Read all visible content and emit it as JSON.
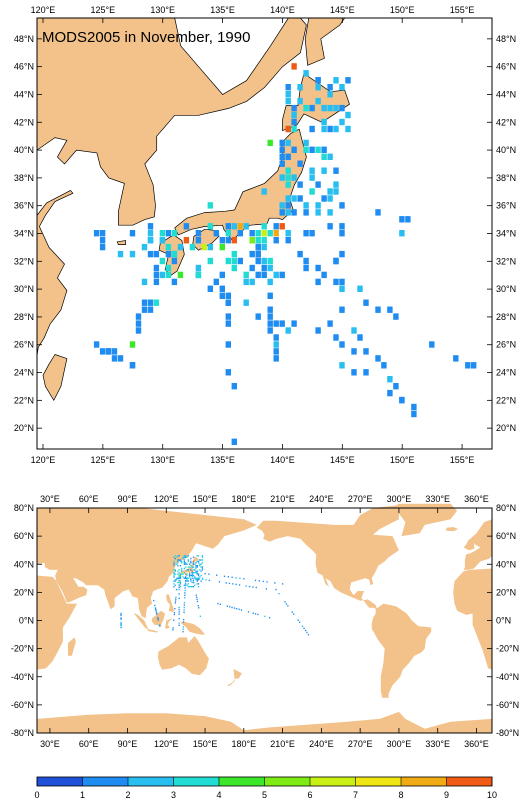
{
  "colors": {
    "land": "#F2C28A",
    "ocean": "#FFFFFF",
    "frame": "#000000",
    "palette": [
      "#2050D8",
      "#1E8CF0",
      "#28BEF0",
      "#20DCD2",
      "#3CE628",
      "#7EEC14",
      "#C8F014",
      "#F0E614",
      "#F0AA14",
      "#F05A14"
    ]
  },
  "regional_map": {
    "title": "MODS2005 in November, 1990",
    "lon_labels": [
      "120°E",
      "125°E",
      "130°E",
      "135°E",
      "140°E",
      "145°E",
      "150°E",
      "155°E"
    ],
    "lat_labels": [
      "48°N",
      "46°N",
      "44°N",
      "42°N",
      "40°N",
      "38°N",
      "36°N",
      "34°N",
      "32°N",
      "30°N",
      "28°N",
      "26°N",
      "24°N",
      "22°N",
      "20°N"
    ]
  },
  "global_map": {
    "lon_labels": [
      "30°E",
      "60°E",
      "90°E",
      "120°E",
      "150°E",
      "180°E",
      "210°E",
      "240°E",
      "270°E",
      "300°E",
      "330°E",
      "360°E"
    ],
    "lat_labels": [
      "80°N",
      "60°N",
      "40°N",
      "20°N",
      "0°N",
      "-20°N",
      "-40°N",
      "-60°N",
      "-80°N"
    ]
  },
  "colorbar": {
    "labels": [
      "0",
      "1",
      "2",
      "3",
      "4",
      "5",
      "6",
      "7",
      "8",
      "9",
      "10"
    ]
  },
  "chart_data": {
    "type": "heatmap",
    "title": "MODS2005 in November, 1990",
    "regional_extent": {
      "lon": [
        119.5,
        157.5
      ],
      "lat": [
        18.5,
        49.5
      ]
    },
    "global_extent": {
      "lon": [
        20,
        372
      ],
      "lat": [
        -80,
        80
      ]
    },
    "color_scale": [
      0,
      10
    ],
    "cells": [
      {
        "lon": 141.0,
        "lat": 46.0,
        "value": 9
      },
      {
        "lon": 142.0,
        "lat": 45.5,
        "value": 2
      },
      {
        "lon": 143.0,
        "lat": 45.0,
        "value": 1
      },
      {
        "lon": 140.5,
        "lat": 41.5,
        "value": 9
      },
      {
        "lon": 139.0,
        "lat": 40.5,
        "value": 4
      },
      {
        "lon": 141.5,
        "lat": 39.0,
        "value": 1
      },
      {
        "lon": 142.5,
        "lat": 38.0,
        "value": 2
      },
      {
        "lon": 140.0,
        "lat": 34.5,
        "value": 10
      },
      {
        "lon": 139.5,
        "lat": 34.0,
        "value": 8
      },
      {
        "lon": 138.5,
        "lat": 34.0,
        "value": 6
      },
      {
        "lon": 137.5,
        "lat": 33.5,
        "value": 5
      },
      {
        "lon": 136.0,
        "lat": 33.5,
        "value": 9
      },
      {
        "lon": 135.0,
        "lat": 33.0,
        "value": 4
      },
      {
        "lon": 133.5,
        "lat": 33.0,
        "value": 6
      },
      {
        "lon": 132.0,
        "lat": 33.5,
        "value": 9
      },
      {
        "lon": 131.0,
        "lat": 32.5,
        "value": 3
      },
      {
        "lon": 130.0,
        "lat": 32.0,
        "value": 3
      },
      {
        "lon": 131.5,
        "lat": 31.0,
        "value": 4
      },
      {
        "lon": 133.0,
        "lat": 31.5,
        "value": 2
      },
      {
        "lon": 134.0,
        "lat": 36.0,
        "value": 3
      },
      {
        "lon": 136.5,
        "lat": 34.5,
        "value": 8
      },
      {
        "lon": 127.5,
        "lat": 26.0,
        "value": 4
      },
      {
        "lon": 129.5,
        "lat": 29.0,
        "value": 3
      },
      {
        "lon": 138.5,
        "lat": 37.0,
        "value": 2
      },
      {
        "lon": 144.0,
        "lat": 34.5,
        "value": 1
      },
      {
        "lon": 145.0,
        "lat": 36.0,
        "value": 1
      },
      {
        "lon": 148.0,
        "lat": 35.5,
        "value": 1
      },
      {
        "lon": 150.0,
        "lat": 35.0,
        "value": 1
      }
    ]
  }
}
